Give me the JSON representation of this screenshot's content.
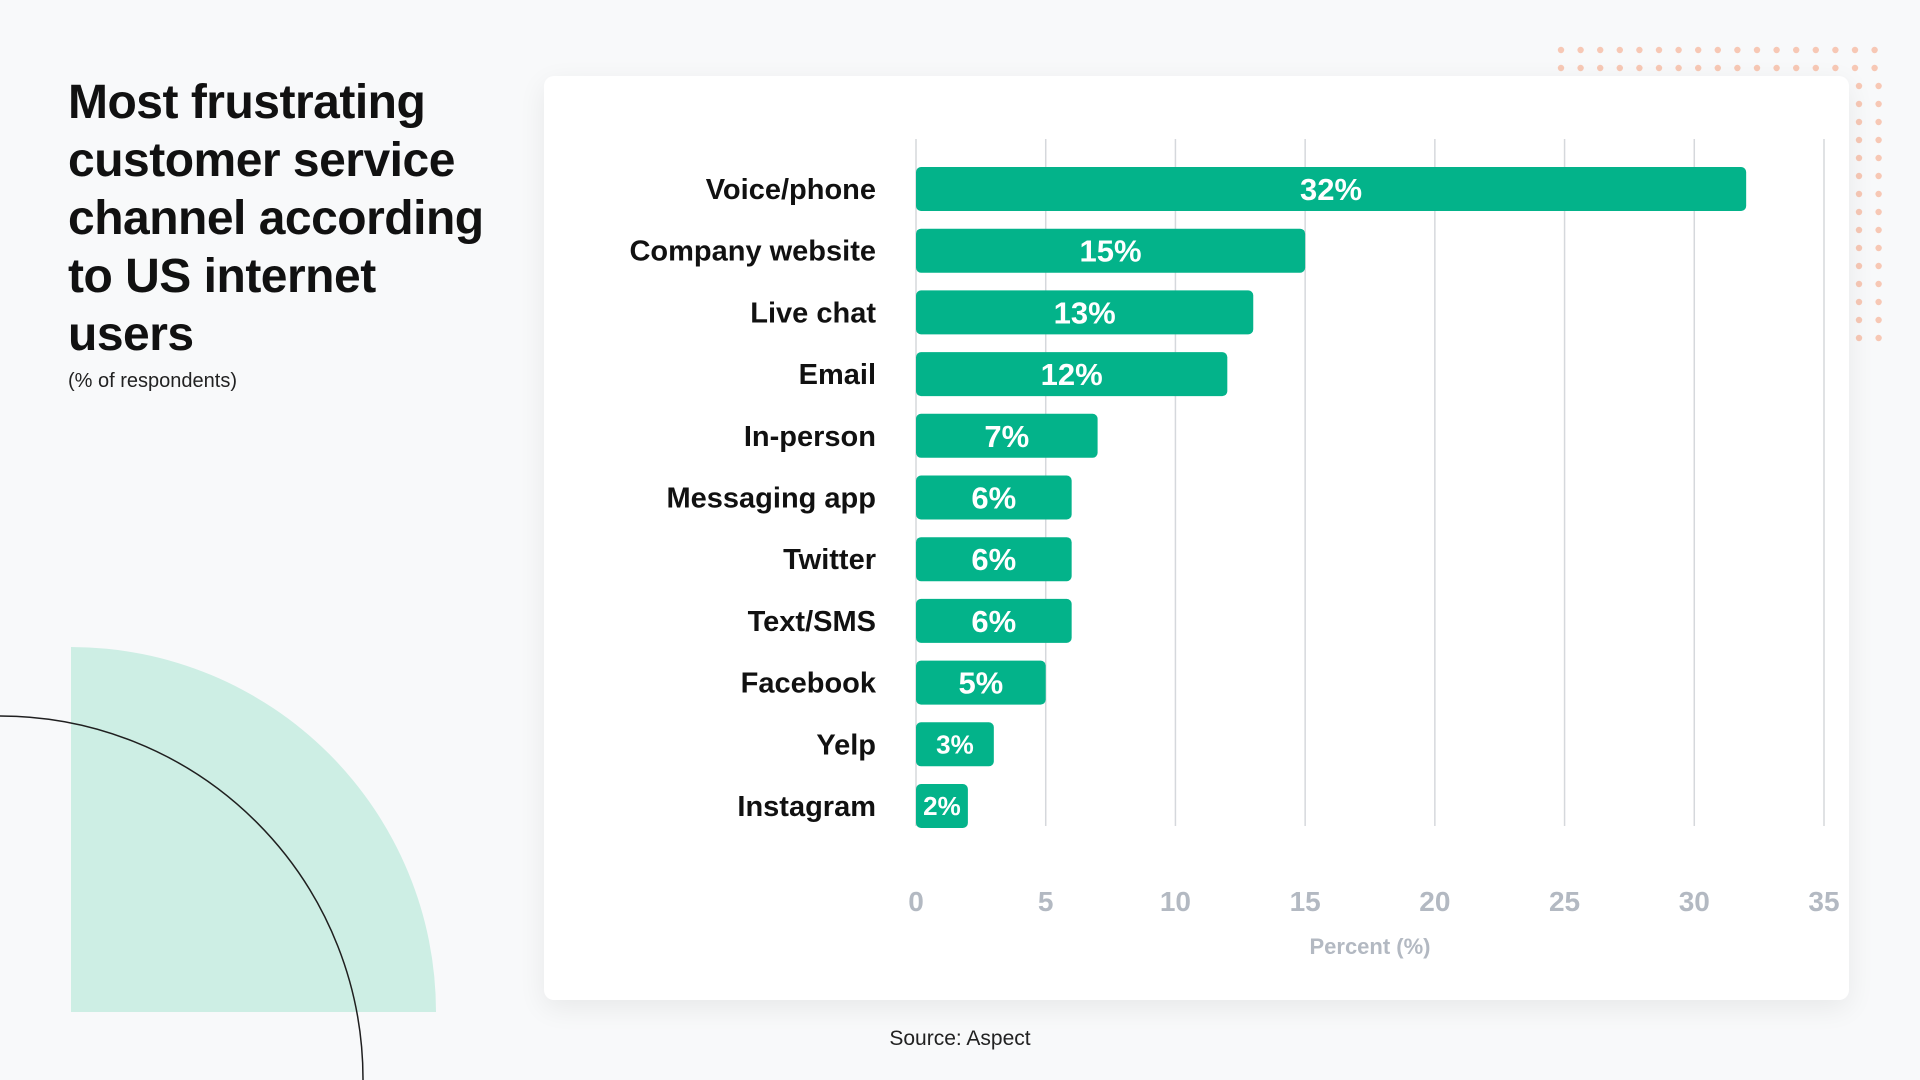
{
  "header": {
    "title": "Most frustrating customer service channel according to US internet users",
    "subtitle": "(% of respondents)"
  },
  "footer": {
    "source": "Source: Aspect"
  },
  "colors": {
    "bar": "#03b38a",
    "grid": "#d5d8dc",
    "tick": "#b3b9c2",
    "deco_mint": "#cdeee4",
    "deco_dots": "#f7c8b5"
  },
  "chart_data": {
    "type": "bar",
    "orientation": "horizontal",
    "categories": [
      "Voice/phone",
      "Company website",
      "Live chat",
      "Email",
      "In-person",
      "Messaging app",
      "Twitter",
      "Text/SMS",
      "Facebook",
      "Yelp",
      "Instagram"
    ],
    "values": [
      32,
      15,
      13,
      12,
      7,
      6,
      6,
      6,
      5,
      3,
      2
    ],
    "data_labels": [
      "32%",
      "15%",
      "13%",
      "12%",
      "7%",
      "6%",
      "6%",
      "6%",
      "5%",
      "3%",
      "2%"
    ],
    "xlabel": "Percent (%)",
    "ylabel": "",
    "xlim": [
      0,
      35
    ],
    "xticks": [
      0,
      5,
      10,
      15,
      20,
      25,
      30,
      35
    ],
    "grid": true,
    "legend": "none"
  }
}
